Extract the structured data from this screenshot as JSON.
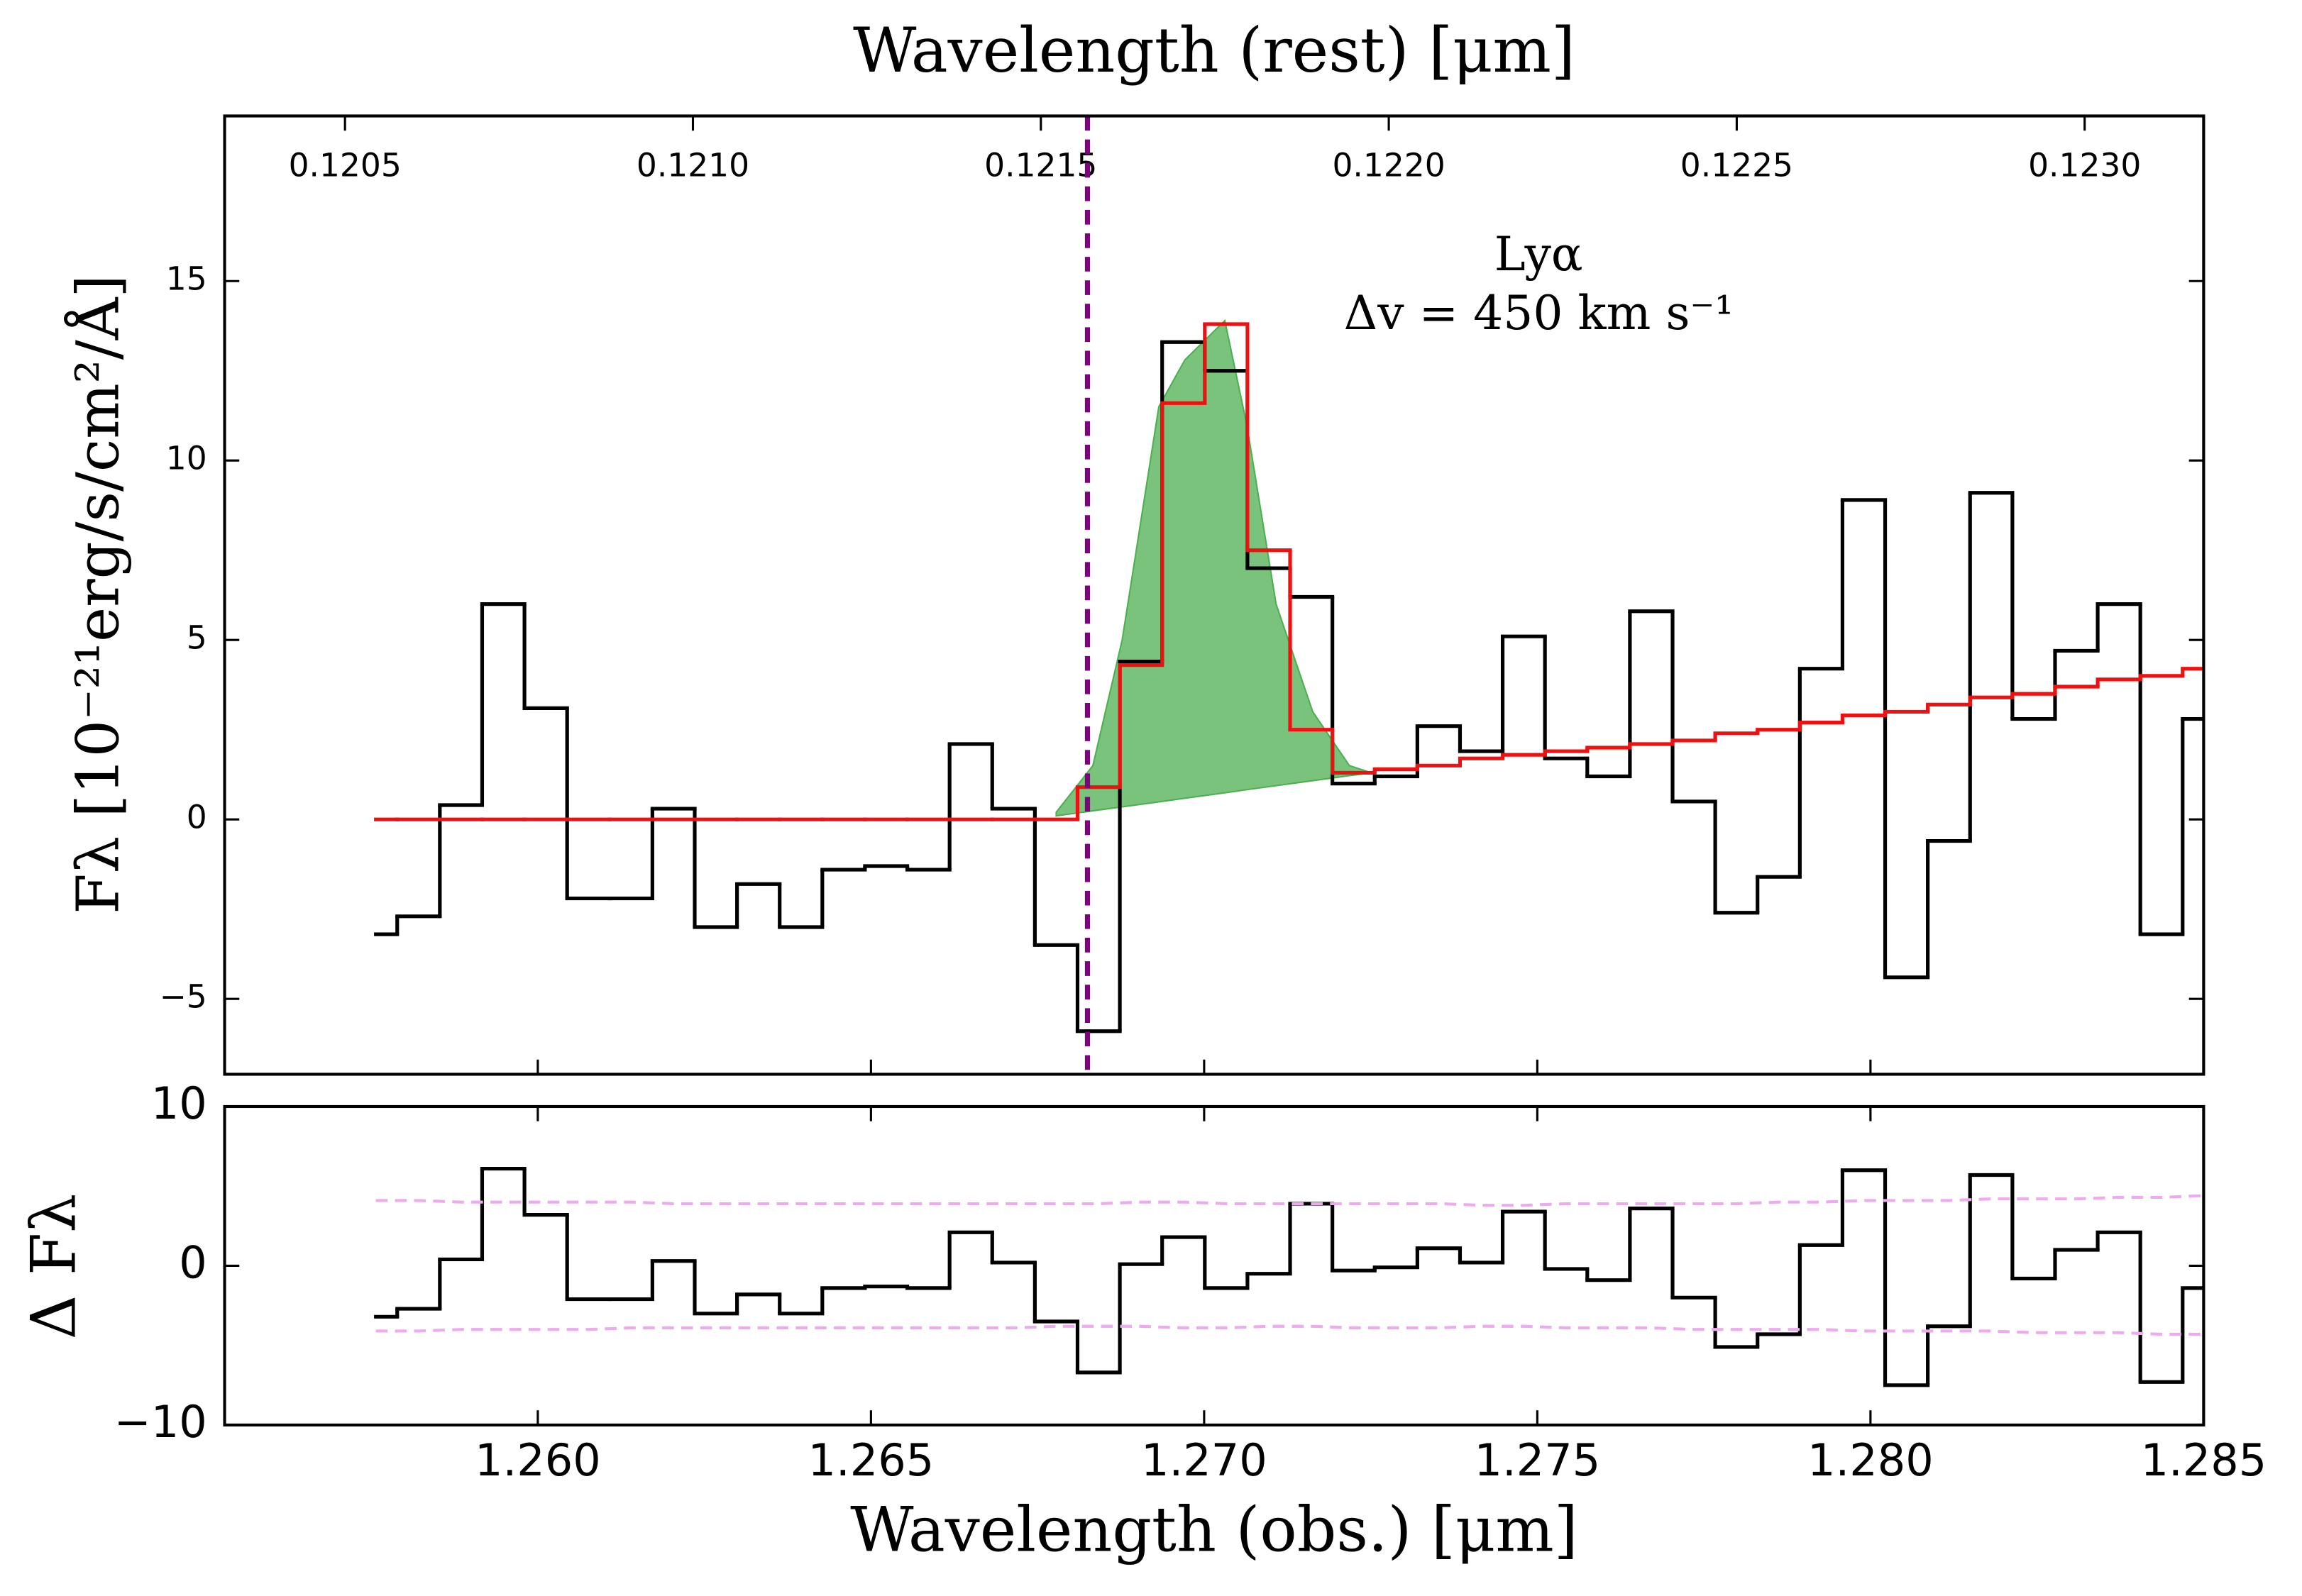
{
  "chart_data": [
    {
      "type": "step",
      "title": "Wavelength (rest) [μm]",
      "ylabel": "Fλ [10⁻²¹erg/s/cm²/Å]",
      "annotations": [
        "Lyα",
        "Δv = 450 km s⁻¹"
      ],
      "x": [
        1.25757,
        1.25821,
        1.25885,
        1.25948,
        1.26012,
        1.26076,
        1.2614,
        1.26204,
        1.26267,
        1.26331,
        1.26395,
        1.26459,
        1.26523,
        1.26586,
        1.2665,
        1.26714,
        1.26778,
        1.26842,
        1.26905,
        1.26969,
        1.27033,
        1.27097,
        1.27161,
        1.27224,
        1.27288,
        1.27352,
        1.27416,
        1.2748,
        1.27543,
        1.27607,
        1.27671,
        1.27735,
        1.27799,
        1.27862,
        1.27926,
        1.2799,
        1.28054,
        1.28118,
        1.28181,
        1.28245,
        1.28309,
        1.28373,
        1.28437,
        1.285
      ],
      "xlim": [
        1.2553,
        1.285
      ],
      "ylim": [
        -7.1,
        19.6
      ],
      "yticks": [
        {
          "value": -5,
          "label": "−5"
        },
        0,
        5,
        10,
        15
      ],
      "x2lim": [
        0.120327,
        0.123171
      ],
      "x2ticks": [
        0.1205,
        {
          "value": 0.121,
          "label": "0.1210"
        },
        0.1215,
        {
          "value": 0.122,
          "label": "0.1220"
        },
        0.1225,
        {
          "value": 0.123,
          "label": "0.1230"
        }
      ],
      "series": [
        {
          "color": "#000000",
          "values": [
            -3.2,
            -2.7,
            0.4,
            6.0,
            3.1,
            -2.2,
            -2.2,
            0.3,
            -3.0,
            -1.8,
            -3.0,
            -1.4,
            -1.3,
            -1.4,
            2.1,
            0.3,
            -3.5,
            -5.9,
            4.4,
            13.3,
            12.5,
            7.0,
            6.2,
            1.0,
            1.2,
            2.6,
            1.9,
            5.1,
            1.7,
            1.2,
            5.8,
            0.5,
            -2.6,
            -1.6,
            4.2,
            8.9,
            -4.4,
            -0.6,
            9.1,
            2.8,
            4.7,
            6.0,
            -3.2,
            2.8
          ]
        },
        {
          "color": "#ee1111",
          "values": [
            0,
            0,
            0,
            0,
            0,
            0,
            0,
            0,
            0,
            0,
            0,
            0,
            0,
            0,
            0,
            0,
            0,
            0.9,
            4.3,
            11.6,
            13.8,
            7.5,
            2.5,
            1.3,
            1.4,
            1.5,
            1.7,
            1.8,
            1.9,
            2.0,
            2.1,
            2.2,
            2.4,
            2.5,
            2.7,
            2.9,
            3.0,
            3.2,
            3.4,
            3.5,
            3.7,
            3.9,
            4.0,
            4.2
          ]
        }
      ],
      "fill": {
        "color": "#4caf50",
        "x": [
          1.26778,
          1.26833,
          1.26877,
          1.26932,
          1.26971,
          1.27031,
          1.27064,
          1.27108,
          1.27163,
          1.27218,
          1.27251
        ],
        "upper": [
          0.2,
          1.5,
          5.0,
          11.5,
          12.8,
          13.9,
          11.0,
          6.0,
          3.0,
          1.5,
          1.3
        ],
        "lower": [
          0.1,
          0.24,
          0.35,
          0.49,
          0.59,
          0.74,
          0.83,
          0.94,
          1.08,
          1.22,
          1.3
        ]
      },
      "vline": {
        "x2": 0.121567,
        "color": "#800080"
      }
    },
    {
      "type": "step",
      "ylabel": "Δ Fλ",
      "xlabel": "Wavelength (obs.) [μm]",
      "x": [
        1.25757,
        1.25821,
        1.25885,
        1.25948,
        1.26012,
        1.26076,
        1.2614,
        1.26204,
        1.26267,
        1.26331,
        1.26395,
        1.26459,
        1.26523,
        1.26586,
        1.2665,
        1.26714,
        1.26778,
        1.26842,
        1.26905,
        1.26969,
        1.27033,
        1.27097,
        1.27161,
        1.27224,
        1.27288,
        1.27352,
        1.27416,
        1.2748,
        1.27543,
        1.27607,
        1.27671,
        1.27735,
        1.27799,
        1.27862,
        1.27926,
        1.2799,
        1.28054,
        1.28118,
        1.28181,
        1.28245,
        1.28309,
        1.28373,
        1.28437,
        1.285
      ],
      "xlim": [
        1.2553,
        1.285
      ],
      "xticks": [
        {
          "value": 1.26,
          "label": "1.260"
        },
        1.265,
        {
          "value": 1.27,
          "label": "1.270"
        },
        1.275,
        {
          "value": 1.28,
          "label": "1.280"
        },
        1.285
      ],
      "ylim": [
        -10,
        10
      ],
      "yticks": [
        {
          "value": -10,
          "label": "−10"
        },
        0,
        10
      ],
      "series": [
        {
          "color": "#000000",
          "style": "step",
          "values": [
            -3.2,
            -2.7,
            0.4,
            6.1,
            3.2,
            -2.1,
            -2.1,
            0.3,
            -3.0,
            -1.8,
            -3.0,
            -1.4,
            -1.3,
            -1.4,
            2.1,
            0.2,
            -3.5,
            -6.7,
            0.1,
            1.8,
            -1.4,
            -0.5,
            3.9,
            -0.3,
            -0.1,
            1.1,
            0.2,
            3.4,
            -0.2,
            -0.9,
            3.6,
            -2.0,
            -5.1,
            -4.3,
            1.3,
            6.0,
            -7.5,
            -3.8,
            5.7,
            -0.8,
            1.0,
            2.1,
            -7.3,
            -1.4
          ]
        },
        {
          "color": "#eeaaee",
          "style": "dashed",
          "values": [
            4.1,
            4.1,
            4.0,
            4.0,
            4.0,
            4.0,
            4.0,
            3.9,
            3.9,
            3.9,
            3.9,
            3.9,
            3.9,
            3.9,
            3.9,
            3.9,
            3.9,
            3.9,
            4.0,
            4.0,
            3.9,
            3.9,
            3.9,
            3.9,
            3.9,
            3.9,
            3.8,
            3.8,
            3.9,
            3.9,
            3.9,
            3.9,
            3.9,
            4.0,
            4.0,
            4.1,
            4.1,
            4.1,
            4.2,
            4.2,
            4.2,
            4.3,
            4.3,
            4.4
          ]
        },
        {
          "color": "#eeaaee",
          "style": "dashed",
          "values": [
            -4.1,
            -4.1,
            -4.0,
            -4.0,
            -4.0,
            -4.0,
            -3.9,
            -3.9,
            -3.9,
            -3.9,
            -3.9,
            -3.9,
            -3.9,
            -3.9,
            -3.9,
            -3.9,
            -3.8,
            -3.8,
            -3.8,
            -3.9,
            -3.9,
            -3.8,
            -3.8,
            -3.9,
            -3.9,
            -3.9,
            -3.8,
            -3.8,
            -3.9,
            -3.9,
            -3.9,
            -4.0,
            -4.0,
            -4.0,
            -4.0,
            -4.1,
            -4.1,
            -4.1,
            -4.1,
            -4.2,
            -4.2,
            -4.2,
            -4.3,
            -4.3
          ]
        }
      ]
    }
  ]
}
